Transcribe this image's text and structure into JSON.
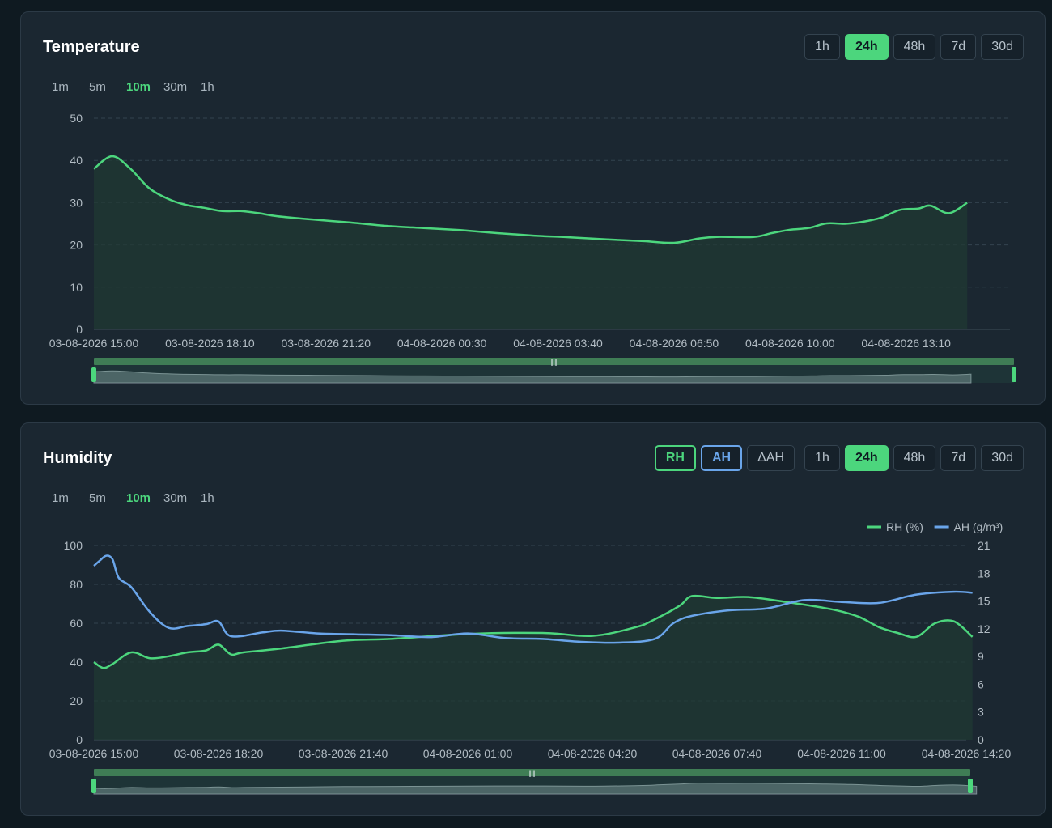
{
  "temperature": {
    "title": "Temperature",
    "ranges": [
      "1h",
      "24h",
      "48h",
      "7d",
      "30d"
    ],
    "active_range": "24h",
    "intervals": [
      "1m",
      "5m",
      "10m",
      "30m",
      "1h"
    ],
    "active_interval": "10m"
  },
  "humidity": {
    "title": "Humidity",
    "toggles": [
      "RH",
      "AH",
      "ΔAH"
    ],
    "ranges": [
      "1h",
      "24h",
      "48h",
      "7d",
      "30d"
    ],
    "active_range": "24h",
    "intervals": [
      "1m",
      "5m",
      "10m",
      "30m",
      "1h"
    ],
    "active_interval": "10m"
  },
  "colors": {
    "green": "#4cd67d",
    "blue": "#6aa5ea",
    "panel": "#1b2731",
    "background": "#0f1a21"
  },
  "chart_data": [
    {
      "type": "area",
      "title": "",
      "ylim": [
        0,
        50
      ],
      "yticks": [
        0,
        10,
        20,
        30,
        40,
        50
      ],
      "x_tick_labels": [
        "03-08-2026 15:00",
        "03-08-2026 18:10",
        "03-08-2026 21:20",
        "04-08-2026 00:30",
        "04-08-2026 03:40",
        "04-08-2026 06:50",
        "04-08-2026 10:00",
        "04-08-2026 13:10"
      ],
      "grid": true,
      "series": [
        {
          "color": "#4cd67d",
          "x": [
            "03-08-2026 15:00",
            "03-08-2026 15:30",
            "03-08-2026 16:00",
            "03-08-2026 16:30",
            "03-08-2026 17:00",
            "03-08-2026 17:30",
            "03-08-2026 18:00",
            "03-08-2026 18:30",
            "03-08-2026 19:00",
            "03-08-2026 19:30",
            "03-08-2026 20:00",
            "03-08-2026 21:00",
            "03-08-2026 22:00",
            "03-08-2026 23:00",
            "04-08-2026 00:00",
            "04-08-2026 01:00",
            "04-08-2026 02:00",
            "04-08-2026 03:00",
            "04-08-2026 04:00",
            "04-08-2026 05:00",
            "04-08-2026 06:00",
            "04-08-2026 06:50",
            "04-08-2026 07:30",
            "04-08-2026 08:00",
            "04-08-2026 09:00",
            "04-08-2026 09:30",
            "04-08-2026 10:00",
            "04-08-2026 10:30",
            "04-08-2026 11:00",
            "04-08-2026 11:30",
            "04-08-2026 12:00",
            "04-08-2026 12:30",
            "04-08-2026 13:00",
            "04-08-2026 13:30",
            "04-08-2026 13:50",
            "04-08-2026 14:20",
            "04-08-2026 14:50"
          ],
          "y": [
            38,
            41,
            38,
            33.5,
            31,
            29.5,
            28.8,
            28,
            28,
            27.5,
            26.8,
            26,
            25.3,
            24.5,
            24,
            23.5,
            22.8,
            22.2,
            21.8,
            21.3,
            20.9,
            20.5,
            21.5,
            21.9,
            21.9,
            22.8,
            23.6,
            24,
            25.1,
            25,
            25.5,
            26.5,
            28.3,
            28.6,
            29.3,
            27.5,
            30
          ]
        }
      ]
    },
    {
      "type": "line",
      "title": "",
      "ylim": [
        0,
        100
      ],
      "yticks": [
        0,
        20,
        40,
        60,
        80,
        100
      ],
      "y2lim": [
        0,
        21
      ],
      "y2ticks": [
        0,
        3,
        6,
        9,
        12,
        15,
        18,
        21
      ],
      "x_tick_labels": [
        "03-08-2026 15:00",
        "03-08-2026 18:20",
        "03-08-2026 21:40",
        "04-08-2026 01:00",
        "04-08-2026 04:20",
        "04-08-2026 07:40",
        "04-08-2026 11:00",
        "04-08-2026 14:20"
      ],
      "legend_position": "top-right",
      "grid": true,
      "series": [
        {
          "name": "RH (%)",
          "axis": "left",
          "color": "#4cd67d",
          "x": [
            "03-08-2026 15:00",
            "03-08-2026 15:15",
            "03-08-2026 15:30",
            "03-08-2026 16:00",
            "03-08-2026 16:30",
            "03-08-2026 17:00",
            "03-08-2026 17:30",
            "03-08-2026 18:00",
            "03-08-2026 18:20",
            "03-08-2026 18:40",
            "03-08-2026 19:00",
            "03-08-2026 20:00",
            "03-08-2026 21:40",
            "03-08-2026 23:00",
            "04-08-2026 01:00",
            "04-08-2026 03:00",
            "04-08-2026 04:20",
            "04-08-2026 05:30",
            "04-08-2026 06:00",
            "04-08-2026 06:40",
            "04-08-2026 07:00",
            "04-08-2026 07:40",
            "04-08-2026 08:30",
            "04-08-2026 09:30",
            "04-08-2026 10:30",
            "04-08-2026 11:00",
            "04-08-2026 11:30",
            "04-08-2026 12:00",
            "04-08-2026 12:30",
            "04-08-2026 13:00",
            "04-08-2026 13:30",
            "04-08-2026 14:00",
            "04-08-2026 14:30"
          ],
          "y": [
            40,
            37,
            39,
            45,
            42,
            43,
            45,
            46,
            49,
            44,
            45,
            47,
            51,
            52,
            54.5,
            55,
            53.5,
            58,
            62,
            69,
            74,
            73,
            73.5,
            71,
            68,
            66,
            63,
            58,
            55,
            53,
            60,
            61,
            53
          ]
        },
        {
          "name": "AH (g/m³)",
          "axis": "right",
          "color": "#6aa5ea",
          "x": [
            "03-08-2026 15:00",
            "03-08-2026 15:10",
            "03-08-2026 15:20",
            "03-08-2026 15:30",
            "03-08-2026 15:40",
            "03-08-2026 16:00",
            "03-08-2026 16:30",
            "03-08-2026 17:00",
            "03-08-2026 17:30",
            "03-08-2026 18:00",
            "03-08-2026 18:20",
            "03-08-2026 18:40",
            "03-08-2026 19:30",
            "03-08-2026 20:00",
            "03-08-2026 21:00",
            "03-08-2026 22:00",
            "03-08-2026 23:00",
            "04-08-2026 00:00",
            "04-08-2026 01:00",
            "04-08-2026 02:00",
            "04-08-2026 03:00",
            "04-08-2026 04:00",
            "04-08-2026 05:00",
            "04-08-2026 06:00",
            "04-08-2026 06:30",
            "04-08-2026 07:00",
            "04-08-2026 08:00",
            "04-08-2026 09:00",
            "04-08-2026 10:00",
            "04-08-2026 11:00",
            "04-08-2026 12:00",
            "04-08-2026 13:00",
            "04-08-2026 14:00",
            "04-08-2026 14:30"
          ],
          "y": [
            18.8,
            19.4,
            19.9,
            19.5,
            17.5,
            16.5,
            13.8,
            12.1,
            12.3,
            12.5,
            12.8,
            11.2,
            11.6,
            11.8,
            11.5,
            11.4,
            11.3,
            11.1,
            11.5,
            11.0,
            10.9,
            10.6,
            10.5,
            10.9,
            12.6,
            13.4,
            14.0,
            14.2,
            15.1,
            14.9,
            14.8,
            15.7,
            16.0,
            15.9
          ]
        }
      ]
    }
  ]
}
